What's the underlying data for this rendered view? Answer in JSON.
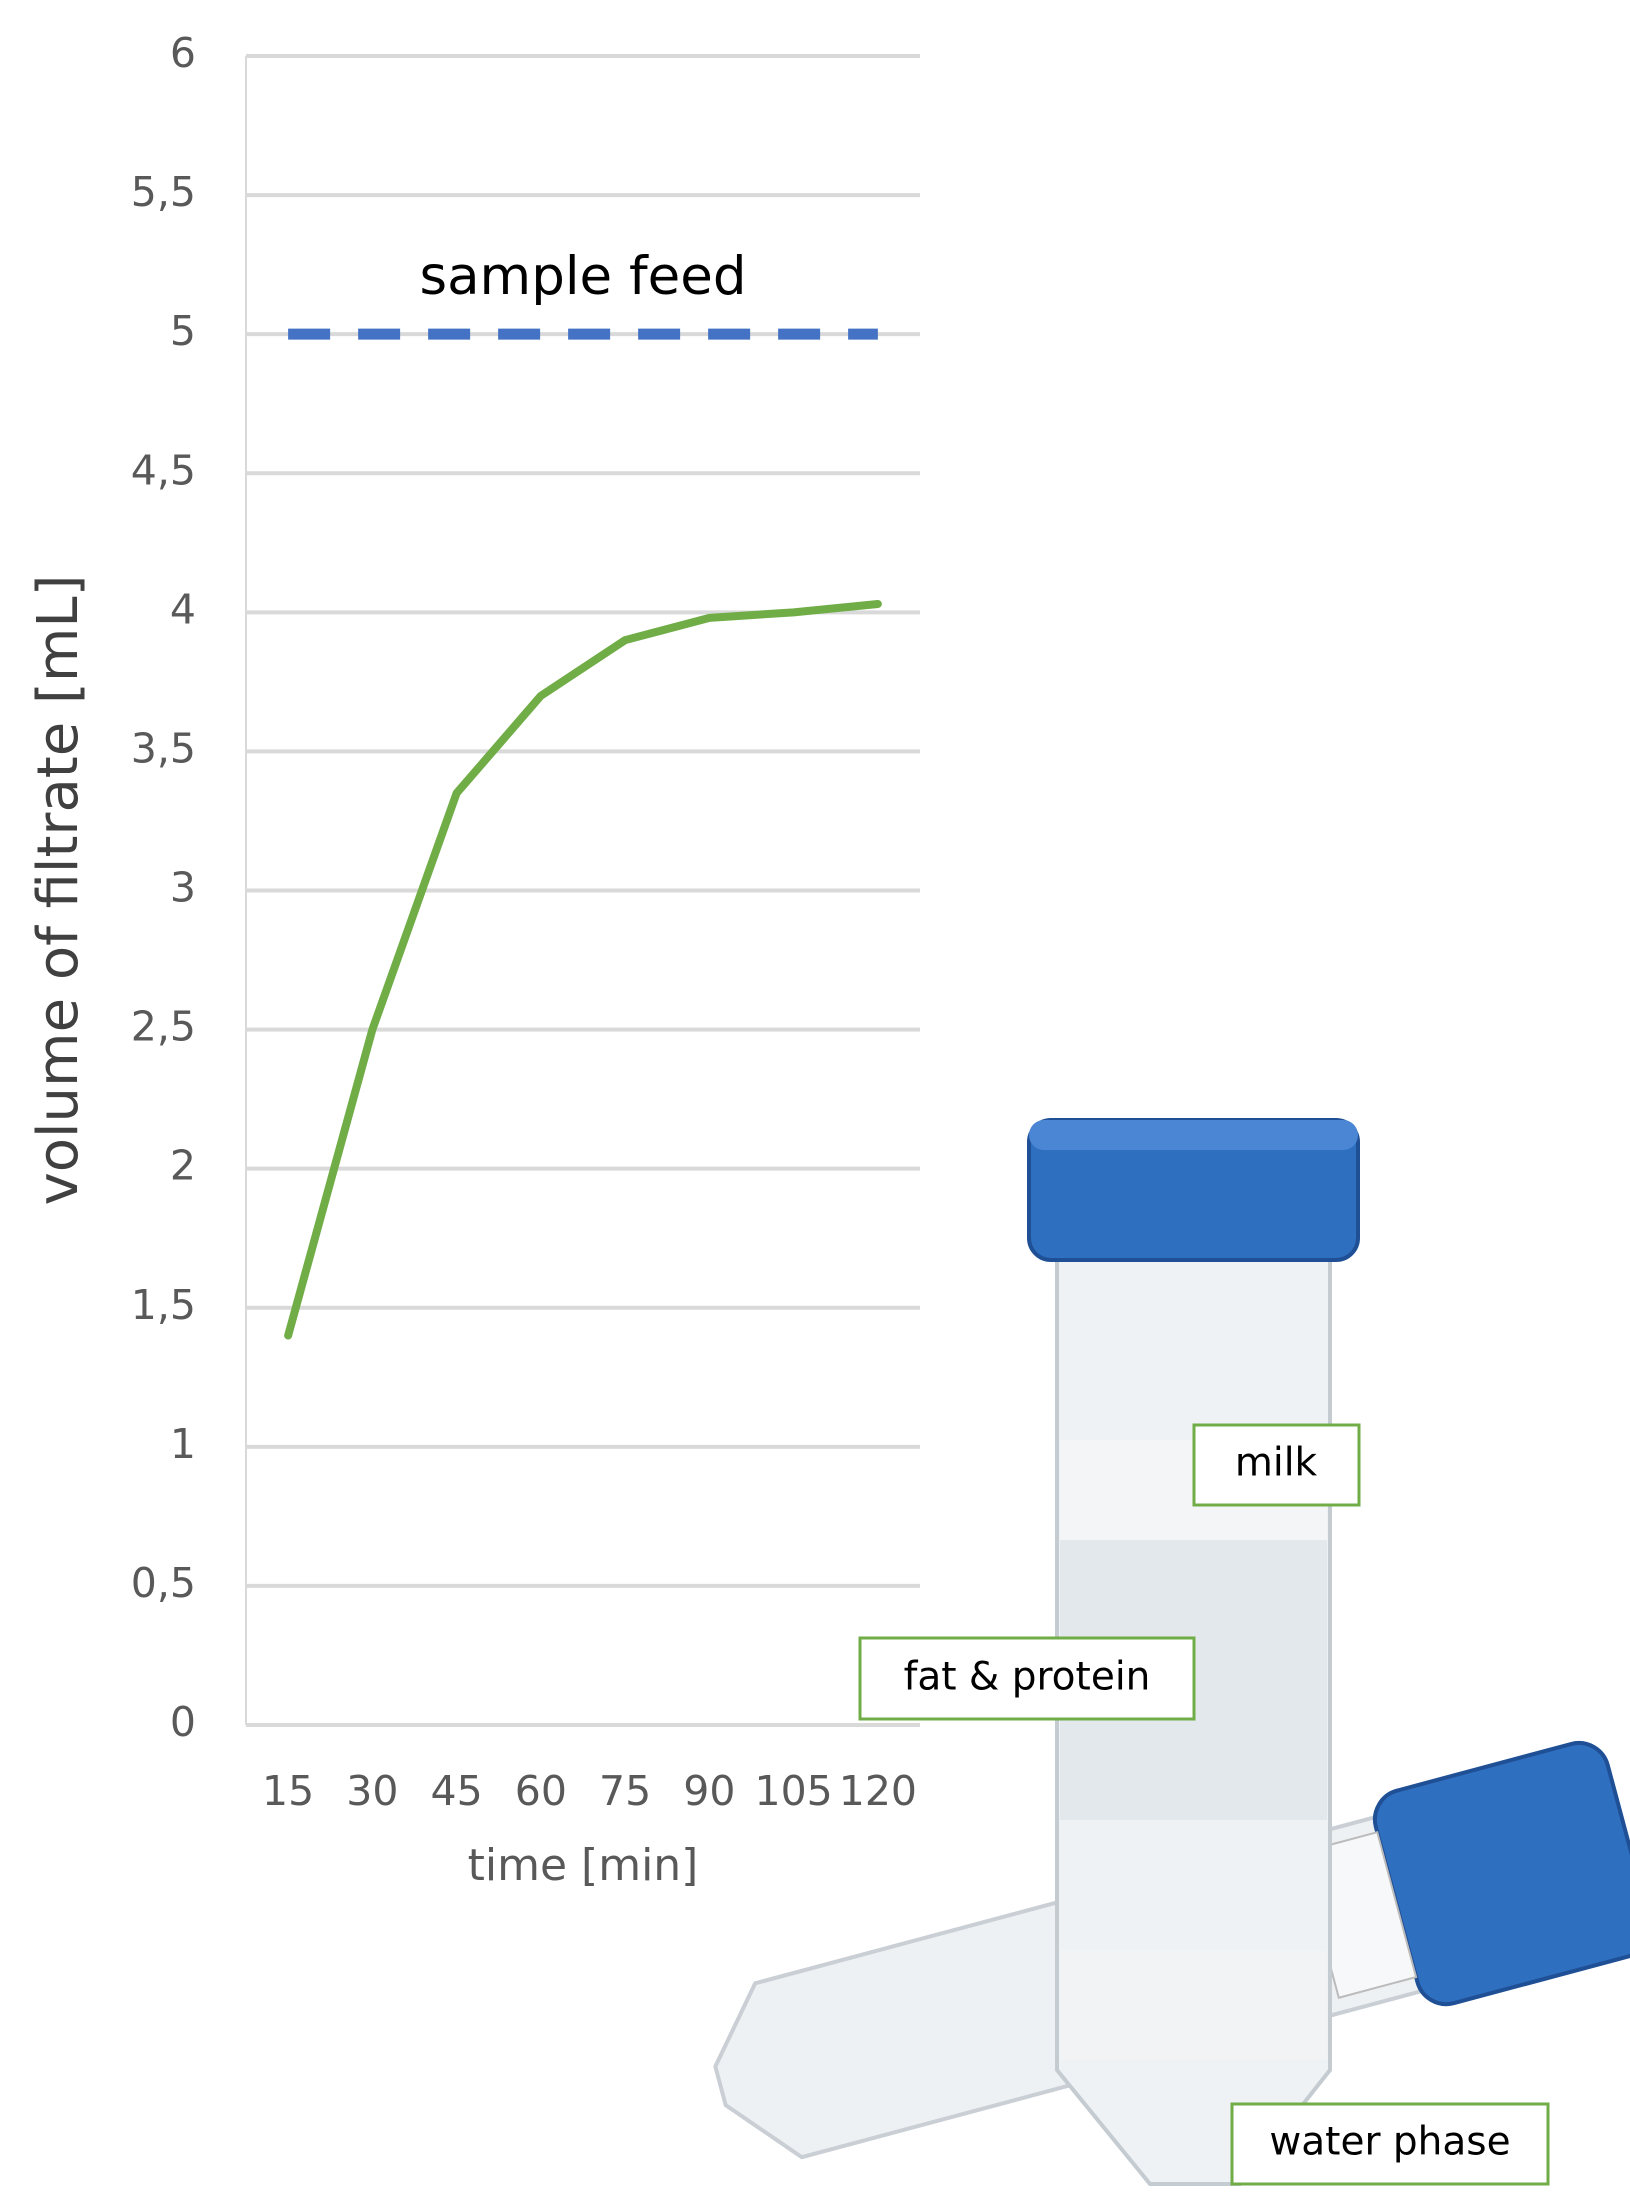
{
  "chart_data": {
    "type": "line",
    "y_label": "volume of filtrate  [mL]",
    "x_label": "time [min]",
    "categories": [
      "15",
      "30",
      "45",
      "60",
      "75",
      "90",
      "105",
      "120"
    ],
    "series": [
      {
        "name": "sample feed",
        "color": "#4472c4",
        "dashed": true,
        "values": [
          5,
          5,
          5,
          5,
          5,
          5,
          5,
          5
        ]
      },
      {
        "color": "#70ad47",
        "values": [
          1.4,
          2.5,
          3.35,
          3.7,
          3.9,
          3.98,
          4.0,
          4.03
        ]
      }
    ],
    "ylim": [
      0,
      6
    ],
    "yticks": [
      0,
      {
        "value": 0.5,
        "label": "0,5"
      },
      1,
      {
        "value": 1.5,
        "label": "1,5"
      },
      2,
      {
        "value": 2.5,
        "label": "2,5"
      },
      3,
      {
        "value": 3.5,
        "label": "3,5"
      },
      4,
      {
        "value": 4.5,
        "label": "4,5"
      },
      5,
      {
        "value": 5.5,
        "label": "5,5"
      },
      6
    ],
    "grid": true,
    "annotations": [
      "milk",
      "fat & protein",
      "water phase"
    ]
  }
}
